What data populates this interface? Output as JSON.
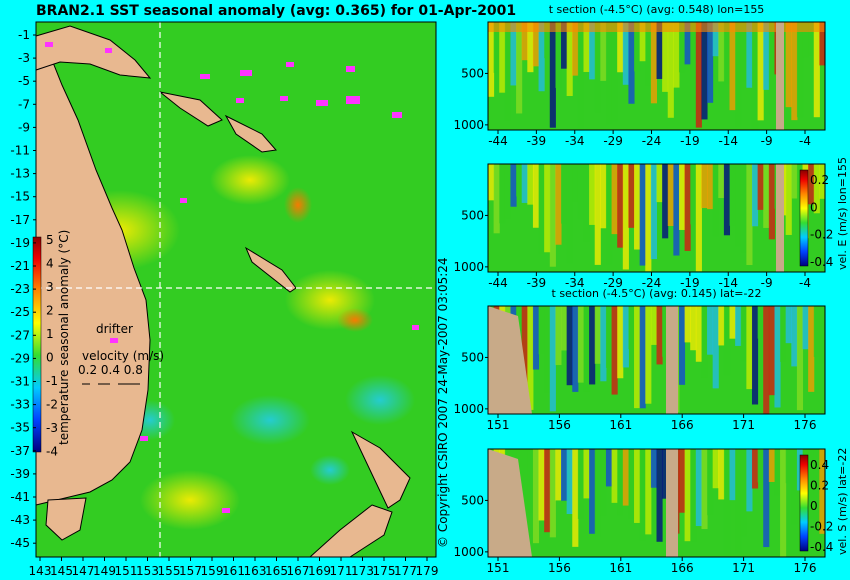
{
  "main_title": "BRAN2.1 SST seasonal anomaly (avg: 0.365) for 01-Apr-2001",
  "copyright": "© Copyright CSIRO 2007  24-May-2007 03:05:24",
  "map": {
    "y_ticks": [
      "-1",
      "-3",
      "-5",
      "-7",
      "-9",
      "-11",
      "-13",
      "-15",
      "-17",
      "-19",
      "-21",
      "-23",
      "-25",
      "-27",
      "-29",
      "-31",
      "-33",
      "-35",
      "-37",
      "-39",
      "-41",
      "-43",
      "-45"
    ],
    "x_ticks": [
      "143",
      "145",
      "147",
      "149",
      "151",
      "153",
      "155",
      "157",
      "159",
      "161",
      "163",
      "165",
      "167",
      "169",
      "171",
      "173",
      "175",
      "177",
      "179"
    ],
    "colorbar_label": "temperature seasonal anomaly (°C)",
    "colorbar_ticks": [
      "5",
      "4",
      "3",
      "2",
      "1",
      "0",
      "-1",
      "-2",
      "-3",
      "-4"
    ],
    "drifter_label": "drifter",
    "velocity_label": "velocity (m/s)",
    "velocity_values": "0.2 0.4 0.8"
  },
  "panels": [
    {
      "title": "t section (-4.5°C) (avg: 0.548) lon=155",
      "x_ticks": [
        "-44",
        "-39",
        "-34",
        "-29",
        "-24",
        "-19",
        "-14",
        "-9",
        "-4"
      ],
      "y_ticks": [
        "500",
        "1000"
      ]
    },
    {
      "title": "",
      "x_ticks": [
        "-44",
        "-39",
        "-34",
        "-29",
        "-24",
        "-19",
        "-14",
        "-9",
        "-4"
      ],
      "y_ticks": [
        "500",
        "1000"
      ],
      "colorbar_label": "vel. E (m/s)  lon=155",
      "colorbar_ticks": [
        "0.2",
        "0",
        "-0.2",
        "-0.4"
      ]
    },
    {
      "title": "t section (-4.5°C) (avg: 0.145) lat=-22",
      "x_ticks": [
        "151",
        "156",
        "161",
        "166",
        "171",
        "176"
      ],
      "y_ticks": [
        "500",
        "1000"
      ]
    },
    {
      "title": "",
      "x_ticks": [
        "151",
        "156",
        "161",
        "166",
        "171",
        "176"
      ],
      "y_ticks": [
        "500",
        "1000"
      ],
      "colorbar_label": "vel. S (m/s)  lat=-22",
      "colorbar_ticks": [
        "0.4",
        "0.2",
        "0",
        "-0.2",
        "-0.4"
      ]
    }
  ],
  "colors": {
    "background": "#00ffff",
    "land": "#e8b890",
    "ocean": "#33cc22",
    "drifter": "#ff33ff",
    "section_land": "#c8aa88"
  },
  "chart_data": [
    {
      "type": "heatmap",
      "title": "BRAN2.1 SST seasonal anomaly (avg: 0.365) for 01-Apr-2001",
      "xlim": [
        143,
        180
      ],
      "ylim": [
        -45,
        0
      ],
      "colorbar_range": [
        -4,
        5
      ],
      "colorbar_unit": "°C"
    },
    {
      "type": "heatmap",
      "title": "t section (-4.5°C) (avg: 0.548) lon=155",
      "xlim": [
        -45,
        0
      ],
      "ylim": [
        1050,
        0
      ]
    },
    {
      "type": "heatmap",
      "title": "",
      "xlim": [
        -45,
        0
      ],
      "ylim": [
        1050,
        0
      ],
      "colorbar_range": [
        -0.4,
        0.4
      ]
    },
    {
      "type": "heatmap",
      "title": "t section (-4.5°C) (avg: 0.145) lat=-22",
      "xlim": [
        150,
        180
      ],
      "ylim": [
        1050,
        0
      ]
    },
    {
      "type": "heatmap",
      "title": "",
      "xlim": [
        150,
        180
      ],
      "ylim": [
        1050,
        0
      ],
      "colorbar_range": [
        -0.4,
        0.4
      ]
    }
  ]
}
